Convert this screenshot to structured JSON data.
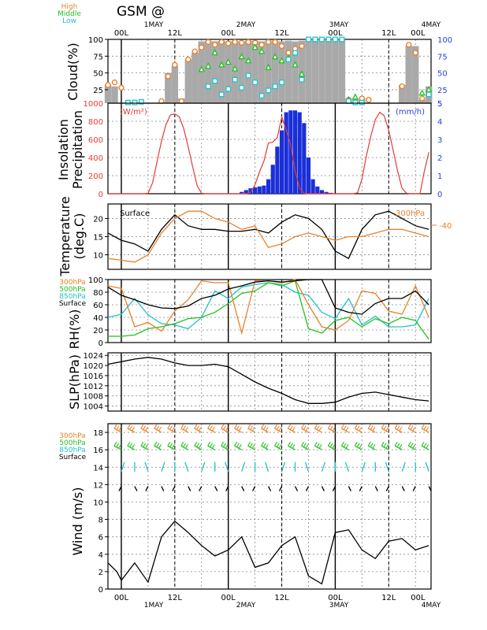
{
  "title": "GSM  @",
  "time_axis": {
    "day_labels": [
      "1MAY",
      "2MAY",
      "3MAY",
      "4MAY"
    ],
    "hour_labels": [
      "00L",
      "12L",
      "00L",
      "12L",
      "00L",
      "12L",
      "00L"
    ]
  },
  "colors": {
    "high": "#e8822a",
    "middle": "#22c122",
    "low": "#1ec3c8",
    "surface": "#000000",
    "insolation": "#e23a3a",
    "precip": "#1b2fd8",
    "cloud_total": "#a9a9a9",
    "right_axis": "#2a3fe0",
    "grid": "#888888"
  },
  "chart_data": [
    {
      "panel": "cloud",
      "type": "bar",
      "ylabel": "Cloud(%)",
      "ylim": [
        5,
        100
      ],
      "yticks": [
        25,
        50,
        75,
        100
      ],
      "right_yticks": [
        5,
        25,
        50,
        75,
        100
      ],
      "legend": [
        "High",
        "Middle",
        "Low"
      ],
      "x_hours": [
        -3,
        -1.5,
        0,
        1.5,
        3,
        4.5,
        6,
        7.5,
        9,
        10.5,
        12,
        13.5,
        15,
        16.5,
        18,
        19.5,
        21,
        22.5,
        24,
        25.5,
        27,
        28.5,
        30,
        31.5,
        33,
        34.5,
        36,
        37.5,
        39,
        40.5,
        42,
        43.5,
        45,
        46.5,
        48,
        49.5,
        51,
        52.5,
        54,
        55.5,
        57,
        58.5,
        60,
        61.5,
        63,
        64.5,
        66,
        67.5,
        69
      ],
      "total": [
        32,
        30,
        5,
        4,
        4,
        5,
        5,
        5,
        7,
        50,
        60,
        12,
        70,
        80,
        97,
        98,
        97,
        98,
        97,
        98,
        97,
        98,
        98,
        97,
        98,
        98,
        97,
        98,
        97,
        98,
        100,
        100,
        100,
        100,
        100,
        100,
        12,
        5,
        12,
        5,
        5,
        5,
        5,
        5,
        32,
        90,
        90,
        10,
        30
      ],
      "high": [
        32,
        36,
        28,
        null,
        null,
        null,
        null,
        null,
        8,
        45,
        62,
        8,
        70,
        82,
        88,
        96,
        92,
        96,
        94,
        96,
        95,
        96,
        95,
        92,
        96,
        96,
        90,
        80,
        86,
        90,
        null,
        null,
        null,
        null,
        null,
        null,
        10,
        8,
        12,
        10,
        null,
        null,
        null,
        null,
        30,
        92,
        80,
        12,
        22
      ],
      "middle": [
        null,
        null,
        null,
        null,
        null,
        null,
        null,
        null,
        null,
        null,
        null,
        null,
        null,
        null,
        55,
        60,
        80,
        62,
        66,
        56,
        74,
        68,
        88,
        82,
        58,
        74,
        68,
        72,
        62,
        48,
        null,
        null,
        null,
        null,
        null,
        null,
        10,
        14,
        null,
        null,
        null,
        null,
        null,
        null,
        null,
        null,
        null,
        20,
        25
      ],
      "low": [
        null,
        null,
        null,
        6,
        6,
        7,
        null,
        null,
        null,
        null,
        null,
        null,
        null,
        null,
        null,
        30,
        38,
        18,
        26,
        40,
        28,
        46,
        36,
        16,
        24,
        30,
        36,
        70,
        80,
        40,
        100,
        100,
        100,
        100,
        100,
        100,
        8,
        6,
        6,
        null,
        null,
        null,
        null,
        null,
        null,
        null,
        null,
        null,
        18
      ]
    },
    {
      "panel": "insolation_precipitation",
      "type": "line+bar",
      "ylabel": "Insolation Precipitation",
      "left_unit": "(W/m²)",
      "right_unit": "(mm/h)",
      "ylim_left": [
        0,
        1000
      ],
      "yticks_left": [
        0,
        200,
        400,
        600,
        800,
        1000
      ],
      "ylim_right": [
        0,
        5
      ],
      "yticks_right": [
        0,
        1,
        2,
        3,
        4,
        5
      ],
      "insolation_x_hours": [
        -3,
        0,
        1,
        2,
        3,
        4,
        5,
        6,
        7,
        8,
        9,
        10,
        11,
        12,
        13,
        14,
        15,
        16,
        17,
        18,
        19,
        20,
        21,
        22,
        23,
        24,
        25,
        26,
        27,
        28,
        29,
        30,
        31,
        32,
        33,
        34,
        35,
        36,
        37,
        38,
        39,
        40,
        41,
        42,
        43,
        44,
        45,
        46,
        47,
        48,
        49,
        50,
        51,
        52,
        53,
        54,
        55,
        56,
        57,
        58,
        59,
        60,
        61,
        62,
        63,
        64,
        65,
        66,
        67,
        68,
        69
      ],
      "insolation": [
        0,
        0,
        0,
        0,
        0,
        0,
        0,
        5,
        120,
        350,
        580,
        760,
        870,
        880,
        850,
        720,
        520,
        300,
        90,
        5,
        0,
        0,
        0,
        0,
        0,
        0,
        0,
        0,
        0,
        0,
        15,
        100,
        240,
        360,
        560,
        570,
        620,
        850,
        700,
        540,
        250,
        60,
        5,
        0,
        0,
        0,
        0,
        0,
        0,
        0,
        0,
        0,
        0,
        0,
        10,
        160,
        420,
        640,
        820,
        900,
        860,
        700,
        480,
        250,
        60,
        5,
        0,
        0,
        0,
        250,
        460
      ],
      "precip_x_hours": [
        27,
        28,
        29,
        30,
        31,
        32,
        33,
        34,
        35,
        36,
        37,
        38,
        39,
        40,
        41,
        42,
        43,
        44,
        45,
        46,
        47,
        48
      ],
      "precip": [
        0.1,
        0.2,
        0.3,
        0.35,
        0.4,
        0.45,
        0.8,
        1.6,
        2.6,
        3.5,
        4.5,
        4.6,
        4.6,
        4.5,
        3.9,
        2.0,
        0.8,
        0.4,
        0.2,
        0.1,
        0.05,
        0
      ]
    },
    {
      "panel": "temperature",
      "type": "line",
      "ylabel": "Temperature (deg.C)",
      "ylim": [
        6,
        24
      ],
      "yticks": [
        10,
        15,
        20
      ],
      "annotations": [
        "Surface",
        "300hPa"
      ],
      "right_tick_label": "-40",
      "series": [
        {
          "name": "Surface",
          "x_hours": [
            -3,
            0,
            3,
            6,
            9,
            12,
            15,
            18,
            21,
            24,
            27,
            30,
            33,
            36,
            39,
            42,
            45,
            48,
            51,
            54,
            57,
            60,
            63,
            66,
            69
          ],
          "values": [
            16,
            14,
            13,
            11,
            17,
            21,
            18,
            17,
            17,
            16.5,
            16.5,
            17,
            16,
            19,
            21,
            20,
            17,
            11,
            9,
            17,
            21,
            22,
            20,
            18,
            17
          ]
        },
        {
          "name": "300hPa",
          "x_hours": [
            -3,
            0,
            3,
            6,
            9,
            12,
            15,
            18,
            21,
            24,
            27,
            30,
            33,
            36,
            39,
            42,
            45,
            48,
            51,
            54,
            57,
            60,
            63,
            66,
            69
          ],
          "values": [
            9,
            8.5,
            8,
            10,
            16,
            20,
            22,
            22,
            20,
            19,
            17,
            18,
            12,
            13,
            15,
            16,
            15,
            14,
            15,
            15,
            16,
            17,
            17,
            16,
            15
          ]
        }
      ]
    },
    {
      "panel": "rh",
      "type": "line",
      "ylabel": "RH(%)",
      "ylim": [
        0,
        100
      ],
      "yticks": [
        0,
        20,
        40,
        60,
        80,
        100
      ],
      "legend": [
        "300hPa",
        "500hPa",
        "850hPa",
        "Surface"
      ],
      "series": [
        {
          "name": "Surface",
          "x_hours": [
            -3,
            0,
            3,
            6,
            9,
            12,
            15,
            18,
            21,
            24,
            27,
            30,
            33,
            36,
            39,
            42,
            45,
            48,
            51,
            54,
            57,
            60,
            63,
            66,
            69
          ],
          "values": [
            88,
            75,
            68,
            60,
            55,
            54,
            58,
            70,
            75,
            85,
            90,
            96,
            98,
            96,
            98,
            100,
            100,
            55,
            48,
            45,
            62,
            70,
            70,
            82,
            60
          ]
        },
        {
          "name": "300hPa",
          "x_hours": [
            -3,
            0,
            3,
            6,
            9,
            12,
            15,
            18,
            21,
            24,
            27,
            30,
            33,
            36,
            39,
            42,
            45,
            48,
            51,
            54,
            57,
            60,
            63,
            66,
            69
          ],
          "values": [
            90,
            86,
            25,
            32,
            18,
            50,
            68,
            98,
            95,
            95,
            15,
            98,
            98,
            95,
            100,
            60,
            25,
            20,
            35,
            82,
            78,
            50,
            45,
            90,
            40
          ]
        },
        {
          "name": "500hPa",
          "x_hours": [
            -3,
            0,
            3,
            6,
            9,
            12,
            15,
            18,
            21,
            24,
            27,
            30,
            33,
            36,
            39,
            42,
            45,
            48,
            51,
            54,
            57,
            60,
            63,
            66,
            69
          ],
          "values": [
            10,
            10,
            12,
            22,
            25,
            30,
            38,
            40,
            48,
            62,
            78,
            82,
            95,
            90,
            98,
            22,
            15,
            35,
            40,
            25,
            38,
            30,
            40,
            35,
            5
          ]
        },
        {
          "name": "850hPa",
          "x_hours": [
            -3,
            0,
            3,
            6,
            9,
            12,
            15,
            18,
            21,
            24,
            27,
            30,
            33,
            36,
            39,
            42,
            45,
            48,
            51,
            54,
            57,
            60,
            63,
            66,
            69
          ],
          "values": [
            40,
            45,
            70,
            44,
            30,
            28,
            22,
            40,
            82,
            70,
            88,
            92,
            95,
            92,
            80,
            75,
            48,
            38,
            70,
            28,
            42,
            25,
            25,
            28,
            70
          ]
        }
      ]
    },
    {
      "panel": "slp",
      "type": "line",
      "ylabel": "SLP(hPa)",
      "ylim": [
        1002,
        1025
      ],
      "yticks": [
        1004,
        1008,
        1012,
        1016,
        1020,
        1024
      ],
      "series": [
        {
          "name": "SLP",
          "x_hours": [
            -3,
            0,
            3,
            6,
            9,
            12,
            15,
            18,
            21,
            24,
            27,
            30,
            33,
            36,
            39,
            42,
            45,
            48,
            51,
            54,
            57,
            60,
            63,
            66,
            69
          ],
          "values": [
            1020.5,
            1021.5,
            1022.5,
            1023.2,
            1022.5,
            1021,
            1020,
            1020,
            1020.5,
            1019.5,
            1016.5,
            1013.5,
            1011,
            1009,
            1006.5,
            1005,
            1005,
            1005.5,
            1007.5,
            1009,
            1009.5,
            1008.5,
            1007.5,
            1006.5,
            1006
          ]
        }
      ]
    },
    {
      "panel": "wind",
      "type": "line",
      "ylabel": "Wind (m/s)",
      "ylim": [
        0,
        19
      ],
      "yticks": [
        0,
        2,
        4,
        6,
        8,
        10,
        12,
        14,
        16,
        18
      ],
      "legend": [
        "300hPa",
        "500hPa",
        "850hPa",
        "Surface"
      ],
      "series": [
        {
          "name": "Surface",
          "x_hours": [
            -3,
            -1,
            0,
            3,
            6,
            9,
            12,
            15,
            18,
            21,
            24,
            27,
            30,
            33,
            36,
            39,
            42,
            45,
            48,
            51,
            54,
            57,
            60,
            63,
            66,
            69
          ],
          "values": [
            3,
            2,
            1,
            3,
            0.8,
            6,
            7.8,
            6.5,
            5,
            3.8,
            4.5,
            6,
            2.5,
            3,
            5,
            6,
            1.5,
            0.6,
            6.5,
            6.8,
            4.5,
            3.5,
            5.5,
            5.8,
            4.5,
            5
          ]
        }
      ],
      "barbs": [
        {
          "level": "300hPa",
          "y_value": 18,
          "x_hours": [
            0,
            3,
            6,
            9,
            12,
            15,
            18,
            21,
            24,
            27,
            30,
            33,
            36,
            39,
            42,
            45,
            48,
            51,
            54,
            57,
            60,
            63,
            66,
            69
          ]
        },
        {
          "level": "500hPa",
          "y_value": 16,
          "x_hours": [
            0,
            3,
            6,
            9,
            12,
            15,
            18,
            21,
            24,
            27,
            30,
            33,
            36,
            39,
            42,
            45,
            48,
            51,
            54,
            57,
            60,
            63,
            66,
            69
          ]
        },
        {
          "level": "850hPa",
          "y_value": 13.5,
          "x_hours": [
            0,
            3,
            6,
            9,
            12,
            15,
            18,
            21,
            24,
            27,
            30,
            33,
            36,
            39,
            42,
            45,
            48,
            51,
            54,
            57,
            60,
            63,
            66,
            69
          ]
        },
        {
          "level": "Surface",
          "y_value": 11.8,
          "x_hours": [
            0,
            3,
            6,
            9,
            12,
            15,
            18,
            21,
            24,
            27,
            30,
            33,
            36,
            39,
            42,
            45,
            48,
            51,
            54,
            57,
            60,
            63,
            66,
            69
          ]
        }
      ]
    }
  ]
}
